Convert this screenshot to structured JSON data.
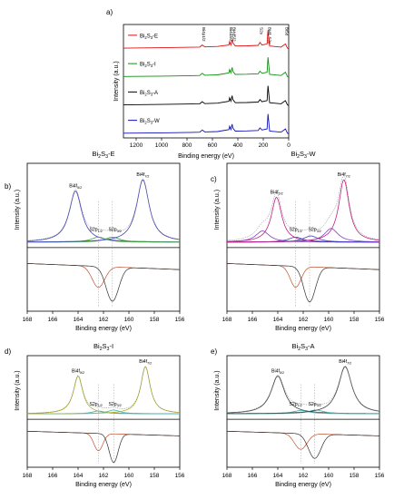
{
  "chart_data": [
    {
      "panel_label": "a)",
      "type": "line",
      "title": "",
      "xlabel": "Binding energy (eV)",
      "ylabel": "Intensity (a.u.)",
      "xlim": [
        1300,
        0
      ],
      "x_ticks": [
        "1200",
        "1000",
        "800",
        "600",
        "400",
        "200",
        "0"
      ],
      "x_tick_values": [
        1200,
        1000,
        800,
        600,
        400,
        200,
        0
      ],
      "annotations": [
        {
          "text": "Bi4p1/2",
          "x": 680
        },
        {
          "text": "Bi4d3/2",
          "x": 465
        },
        {
          "text": "Bi4d5/2",
          "x": 440
        },
        {
          "text": "S2s",
          "x": 226
        },
        {
          "text": "Bi4f, S2p",
          "x": 160
        },
        {
          "text": "Bi5d",
          "x": 26
        }
      ],
      "series": [
        {
          "name": "Bi2S3-E",
          "color": "#e01010",
          "points": [
            [
              1300,
              0.05
            ],
            [
              1000,
              0.07
            ],
            [
              760,
              0.09
            ],
            [
              700,
              0.1
            ],
            [
              680,
              0.2
            ],
            [
              660,
              0.11
            ],
            [
              560,
              0.13
            ],
            [
              470,
              0.2
            ],
            [
              465,
              0.35
            ],
            [
              455,
              0.2
            ],
            [
              445,
              0.45
            ],
            [
              440,
              0.3
            ],
            [
              420,
              0.15
            ],
            [
              330,
              0.16
            ],
            [
              240,
              0.18
            ],
            [
              226,
              0.32
            ],
            [
              210,
              0.2
            ],
            [
              170,
              0.25
            ],
            [
              163,
              0.9
            ],
            [
              158,
              0.6
            ],
            [
              150,
              0.15
            ],
            [
              60,
              0.1
            ],
            [
              26,
              0.25
            ],
            [
              10,
              0.05
            ],
            [
              0,
              0.02
            ]
          ]
        },
        {
          "name": "Bi2S3-I",
          "color": "#109010",
          "points": [
            [
              1300,
              0.05
            ],
            [
              1000,
              0.07
            ],
            [
              760,
              0.09
            ],
            [
              700,
              0.1
            ],
            [
              680,
              0.2
            ],
            [
              660,
              0.11
            ],
            [
              560,
              0.13
            ],
            [
              470,
              0.22
            ],
            [
              465,
              0.38
            ],
            [
              455,
              0.22
            ],
            [
              445,
              0.48
            ],
            [
              440,
              0.3
            ],
            [
              420,
              0.15
            ],
            [
              330,
              0.16
            ],
            [
              240,
              0.18
            ],
            [
              226,
              0.3
            ],
            [
              210,
              0.2
            ],
            [
              170,
              0.25
            ],
            [
              163,
              0.95
            ],
            [
              158,
              0.65
            ],
            [
              150,
              0.15
            ],
            [
              60,
              0.1
            ],
            [
              26,
              0.25
            ],
            [
              10,
              0.05
            ],
            [
              0,
              0.02
            ]
          ]
        },
        {
          "name": "Bi2S3-A",
          "color": "#000000",
          "points": [
            [
              1300,
              0.05
            ],
            [
              1000,
              0.07
            ],
            [
              760,
              0.09
            ],
            [
              700,
              0.1
            ],
            [
              680,
              0.2
            ],
            [
              660,
              0.11
            ],
            [
              560,
              0.13
            ],
            [
              470,
              0.22
            ],
            [
              465,
              0.38
            ],
            [
              455,
              0.22
            ],
            [
              445,
              0.48
            ],
            [
              440,
              0.3
            ],
            [
              420,
              0.15
            ],
            [
              330,
              0.16
            ],
            [
              240,
              0.18
            ],
            [
              226,
              0.3
            ],
            [
              210,
              0.2
            ],
            [
              170,
              0.25
            ],
            [
              163,
              0.95
            ],
            [
              158,
              0.65
            ],
            [
              150,
              0.15
            ],
            [
              60,
              0.1
            ],
            [
              26,
              0.25
            ],
            [
              10,
              0.05
            ],
            [
              0,
              0.02
            ]
          ]
        },
        {
          "name": "Bi2S3-W",
          "color": "#1010c0",
          "points": [
            [
              1300,
              0.05
            ],
            [
              1000,
              0.07
            ],
            [
              760,
              0.09
            ],
            [
              700,
              0.1
            ],
            [
              680,
              0.2
            ],
            [
              660,
              0.11
            ],
            [
              560,
              0.13
            ],
            [
              470,
              0.22
            ],
            [
              465,
              0.38
            ],
            [
              455,
              0.22
            ],
            [
              445,
              0.48
            ],
            [
              440,
              0.3
            ],
            [
              420,
              0.15
            ],
            [
              330,
              0.16
            ],
            [
              240,
              0.18
            ],
            [
              226,
              0.3
            ],
            [
              210,
              0.2
            ],
            [
              170,
              0.25
            ],
            [
              163,
              0.95
            ],
            [
              158,
              0.65
            ],
            [
              150,
              0.15
            ],
            [
              60,
              0.1
            ],
            [
              26,
              0.25
            ],
            [
              10,
              0.05
            ],
            [
              0,
              0.02
            ]
          ]
        }
      ]
    },
    {
      "panel_label": "b)",
      "type": "line",
      "title": "Bi2S3-E",
      "xlabel": "Binding energy (eV)",
      "ylabel": "Intensity (a.u.)",
      "xlim": [
        168,
        156
      ],
      "x_ticks": [
        "168",
        "166",
        "164",
        "162",
        "160",
        "158",
        "156"
      ],
      "x_tick_values": [
        168,
        166,
        164,
        162,
        160,
        158,
        156
      ],
      "peak_labels": [
        "Bi4f5/2",
        "S2p1/2",
        "S2p3/2",
        "Bi4f7/2"
      ],
      "peaks": [
        {
          "name": "Bi4f5/2",
          "center": 164.2,
          "fwhm": 1.2,
          "amplitude": 0.82,
          "color": "#4040c0"
        },
        {
          "name": "S2p1/2",
          "center": 162.4,
          "fwhm": 1.4,
          "amplitude": 0.08,
          "color": "#40a040"
        },
        {
          "name": "S2p3/2",
          "center": 161.3,
          "fwhm": 1.4,
          "amplitude": 0.08,
          "color": "#40a040"
        },
        {
          "name": "Bi4f7/2",
          "center": 158.9,
          "fwhm": 1.2,
          "amplitude": 1.0,
          "color": "#4040c0"
        }
      ],
      "difference": {
        "color_left": "#c05030",
        "color_right": "#303030",
        "peaks": [
          [
            162.4,
            0.55,
            0.7
          ],
          [
            161.3,
            0.9,
            0.7
          ]
        ],
        "dashed_at": [
          162.4,
          161.3
        ]
      }
    },
    {
      "panel_label": "c)",
      "type": "line",
      "title": "Bi2S3-W",
      "xlabel": "Binding energy (eV)",
      "ylabel": "Intensity (a.u.)",
      "xlim": [
        168,
        156
      ],
      "x_ticks": [
        "168",
        "166",
        "164",
        "162",
        "160",
        "158",
        "156"
      ],
      "x_tick_values": [
        168,
        166,
        164,
        162,
        160,
        158,
        156
      ],
      "peak_labels": [
        "Bi4f5/2",
        "S2p1/2",
        "S2p3/2",
        "Bi4f7/2"
      ],
      "peaks": [
        {
          "name": "Bi4f5/2",
          "center": 164.1,
          "fwhm": 1.0,
          "amplitude": 0.72,
          "color": "#c02080"
        },
        {
          "name": "Bi4f5/2 shoulder",
          "center": 165.2,
          "fwhm": 1.3,
          "amplitude": 0.18,
          "color": "#8040c0"
        },
        {
          "name": "S2p1/2",
          "center": 162.6,
          "fwhm": 1.4,
          "amplitude": 0.08,
          "color": "#4040c0"
        },
        {
          "name": "S2p3/2",
          "center": 161.4,
          "fwhm": 1.4,
          "amplitude": 0.1,
          "color": "#4040c0"
        },
        {
          "name": "Bi4f7/2 shoulder",
          "center": 159.8,
          "fwhm": 1.3,
          "amplitude": 0.22,
          "color": "#8040c0"
        },
        {
          "name": "Bi4f7/2",
          "center": 158.8,
          "fwhm": 1.0,
          "amplitude": 1.0,
          "color": "#c02080"
        }
      ],
      "difference": {
        "color_left": "#c05030",
        "color_right": "#303030",
        "peaks": [
          [
            162.6,
            0.55,
            0.6
          ],
          [
            161.5,
            0.92,
            0.65
          ]
        ],
        "dashed_at": [
          162.6,
          161.5
        ]
      }
    },
    {
      "panel_label": "d)",
      "type": "line",
      "title": "Bi2S3-I",
      "xlabel": "Binding energy (eV)",
      "ylabel": "Intensity (a.u.)",
      "xlim": [
        168,
        156
      ],
      "x_ticks": [
        "168",
        "166",
        "164",
        "162",
        "160",
        "158",
        "156"
      ],
      "x_tick_values": [
        168,
        166,
        164,
        162,
        160,
        158,
        156
      ],
      "peak_labels": [
        "Bi4f5/2",
        "S2p1/2",
        "S2p3/2",
        "Bi4f7/2"
      ],
      "peaks": [
        {
          "name": "Bi4f5/2",
          "center": 164.0,
          "fwhm": 0.9,
          "amplitude": 0.8,
          "color": "#b0b020"
        },
        {
          "name": "S2p1/2",
          "center": 162.4,
          "fwhm": 1.2,
          "amplitude": 0.06,
          "color": "#40b0b0"
        },
        {
          "name": "S2p3/2",
          "center": 161.2,
          "fwhm": 1.2,
          "amplitude": 0.08,
          "color": "#40b0b0"
        },
        {
          "name": "Bi4f7/2",
          "center": 158.7,
          "fwhm": 0.9,
          "amplitude": 1.0,
          "color": "#b0b020"
        }
      ],
      "difference": {
        "color_left": "#c05030",
        "color_right": "#303030",
        "peaks": [
          [
            162.4,
            0.6,
            0.5
          ],
          [
            161.2,
            1.0,
            0.5
          ]
        ],
        "dashed_at": [
          162.4,
          161.2
        ]
      }
    },
    {
      "panel_label": "e)",
      "type": "line",
      "title": "Bi2S3-A",
      "xlabel": "Binding energy (eV)",
      "ylabel": "Intensity (a.u.)",
      "xlim": [
        168,
        156
      ],
      "x_ticks": [
        "168",
        "166",
        "164",
        "162",
        "160",
        "158",
        "156"
      ],
      "x_tick_values": [
        168,
        166,
        164,
        162,
        160,
        158,
        156
      ],
      "peak_labels": [
        "Bi4f5/2",
        "S2p1/2",
        "S2p3/2",
        "Bi4f7/2"
      ],
      "peaks": [
        {
          "name": "Bi4f5/2",
          "center": 164.0,
          "fwhm": 1.3,
          "amplitude": 0.8,
          "color": "#404040"
        },
        {
          "name": "S2p1/2",
          "center": 162.2,
          "fwhm": 1.5,
          "amplitude": 0.07,
          "color": "#40b0b0"
        },
        {
          "name": "S2p3/2",
          "center": 161.0,
          "fwhm": 1.5,
          "amplitude": 0.08,
          "color": "#40b0b0"
        },
        {
          "name": "Bi4f7/2",
          "center": 158.7,
          "fwhm": 1.3,
          "amplitude": 1.0,
          "color": "#404040"
        }
      ],
      "difference": {
        "color_left": "#c05030",
        "color_right": "#303030",
        "peaks": [
          [
            162.2,
            0.55,
            0.7
          ],
          [
            161.1,
            0.85,
            0.7
          ]
        ],
        "dashed_at": [
          162.2,
          161.1
        ]
      }
    }
  ]
}
